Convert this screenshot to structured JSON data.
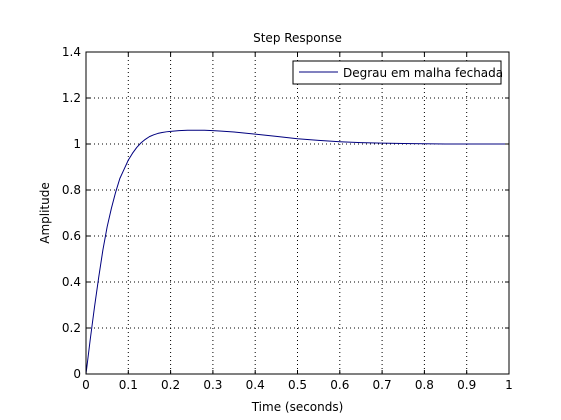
{
  "chart_data": {
    "type": "line",
    "title": "Step Response",
    "xlabel": "Time (seconds)",
    "ylabel": "Amplitude",
    "xlim": [
      0,
      1
    ],
    "ylim": [
      0,
      1.4
    ],
    "xticks": [
      0,
      0.1,
      0.2,
      0.3,
      0.4,
      0.5,
      0.6,
      0.7,
      0.8,
      0.9,
      1
    ],
    "xtick_labels": [
      "0",
      "0.1",
      "0.2",
      "0.3",
      "0.4",
      "0.5",
      "0.6",
      "0.7",
      "0.8",
      "0.9",
      "1"
    ],
    "yticks": [
      0,
      0.2,
      0.4,
      0.6,
      0.8,
      1,
      1.2,
      1.4
    ],
    "ytick_labels": [
      "0",
      "0.2",
      "0.4",
      "0.6",
      "0.8",
      "1",
      "1.2",
      "1.4"
    ],
    "grid": true,
    "legend_position": "top-right",
    "series": [
      {
        "name": "Degrau em malha fechada",
        "color": "#00007f",
        "x": [
          0,
          0.01,
          0.02,
          0.03,
          0.04,
          0.05,
          0.06,
          0.07,
          0.08,
          0.09,
          0.1,
          0.11,
          0.12,
          0.13,
          0.14,
          0.15,
          0.16,
          0.17,
          0.18,
          0.19,
          0.2,
          0.22,
          0.24,
          0.26,
          0.28,
          0.3,
          0.32,
          0.35,
          0.4,
          0.45,
          0.5,
          0.55,
          0.6,
          0.65,
          0.7,
          0.75,
          0.8,
          0.85,
          0.9,
          0.95,
          1.0
        ],
        "y": [
          0,
          0.15,
          0.29,
          0.42,
          0.54,
          0.64,
          0.72,
          0.79,
          0.85,
          0.89,
          0.93,
          0.96,
          0.985,
          1.005,
          1.02,
          1.032,
          1.04,
          1.046,
          1.05,
          1.053,
          1.055,
          1.058,
          1.06,
          1.06,
          1.06,
          1.058,
          1.056,
          1.052,
          1.043,
          1.033,
          1.023,
          1.016,
          1.01,
          1.006,
          1.004,
          1.002,
          1.001,
          1.0,
          1.0,
          1.0,
          1.0
        ]
      }
    ]
  }
}
